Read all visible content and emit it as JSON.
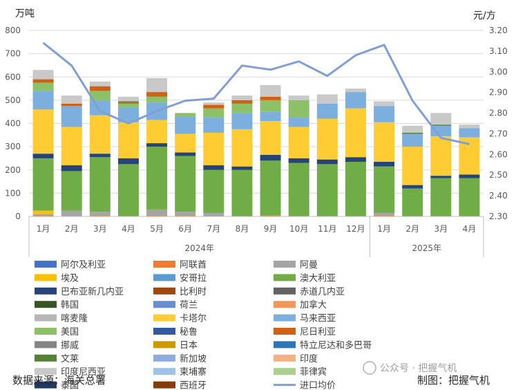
{
  "chart_data": {
    "type": "bar",
    "stacked": true,
    "categories": [
      "1月",
      "2月",
      "3月",
      "4月",
      "5月",
      "6月",
      "7月",
      "8月",
      "9月",
      "10月",
      "11月",
      "12月",
      "1月",
      "2月",
      "3月",
      "4月"
    ],
    "year_groups": [
      {
        "label": "2024年",
        "count": 12
      },
      {
        "label": "2025年",
        "count": 4
      }
    ],
    "left_axis": {
      "unit": "万吨",
      "min": 0,
      "max": 800,
      "step": 100
    },
    "right_axis": {
      "unit": "元/方",
      "min": 2.3,
      "max": 3.2,
      "step": 0.1
    },
    "series": [
      {
        "name": "阿尔及利亚",
        "color": "#4472c4",
        "values": [
          0,
          0,
          0,
          0,
          0,
          0,
          0,
          0,
          0,
          0,
          0,
          0,
          0,
          0,
          0,
          0
        ]
      },
      {
        "name": "阿联酋",
        "color": "#ed7d31",
        "values": [
          5,
          0,
          5,
          0,
          5,
          5,
          0,
          0,
          5,
          0,
          0,
          0,
          5,
          0,
          0,
          0
        ]
      },
      {
        "name": "阿曼",
        "color": "#a5a5a5",
        "values": [
          5,
          25,
          15,
          0,
          25,
          15,
          15,
          0,
          0,
          0,
          0,
          0,
          10,
          0,
          0,
          0
        ]
      },
      {
        "name": "埃及",
        "color": "#ffc000",
        "values": [
          15,
          0,
          0,
          0,
          0,
          0,
          0,
          0,
          0,
          0,
          0,
          0,
          0,
          0,
          0,
          0
        ]
      },
      {
        "name": "安哥拉",
        "color": "#5b9bd5",
        "values": [
          0,
          0,
          0,
          0,
          0,
          0,
          0,
          0,
          0,
          0,
          0,
          0,
          0,
          0,
          0,
          0
        ]
      },
      {
        "name": "澳大利亚",
        "color": "#70ad47",
        "values": [
          225,
          170,
          235,
          225,
          270,
          240,
          185,
          200,
          235,
          230,
          225,
          235,
          200,
          120,
          165,
          165
        ]
      },
      {
        "name": "巴布亚新几内亚",
        "color": "#264478",
        "values": [
          20,
          25,
          15,
          25,
          15,
          15,
          20,
          15,
          25,
          20,
          20,
          20,
          20,
          15,
          10,
          15
        ]
      },
      {
        "name": "比利时",
        "color": "#9e480e",
        "values": [
          0,
          0,
          0,
          0,
          0,
          0,
          0,
          0,
          0,
          0,
          0,
          0,
          0,
          0,
          0,
          0
        ]
      },
      {
        "name": "赤道几内亚",
        "color": "#636363",
        "values": [
          0,
          0,
          0,
          0,
          0,
          0,
          0,
          0,
          0,
          0,
          0,
          0,
          0,
          0,
          0,
          0
        ]
      },
      {
        "name": "韩国",
        "color": "#375623",
        "values": [
          0,
          0,
          0,
          0,
          0,
          0,
          0,
          0,
          0,
          0,
          0,
          0,
          0,
          0,
          0,
          0
        ]
      },
      {
        "name": "荷兰",
        "color": "#698ed0",
        "values": [
          0,
          0,
          0,
          0,
          0,
          0,
          0,
          0,
          0,
          0,
          0,
          0,
          0,
          0,
          0,
          0
        ]
      },
      {
        "name": "加拿大",
        "color": "#f1975a",
        "values": [
          0,
          0,
          0,
          0,
          0,
          0,
          0,
          0,
          0,
          0,
          0,
          0,
          0,
          0,
          0,
          0
        ]
      },
      {
        "name": "喀麦隆",
        "color": "#b7b7b7",
        "values": [
          0,
          0,
          0,
          0,
          0,
          0,
          0,
          0,
          0,
          0,
          0,
          0,
          0,
          0,
          0,
          0
        ]
      },
      {
        "name": "卡塔尔",
        "color": "#ffcd33",
        "values": [
          190,
          165,
          165,
          155,
          100,
          80,
          140,
          160,
          145,
          135,
          175,
          210,
          170,
          165,
          170,
          160
        ]
      },
      {
        "name": "马来西亚",
        "color": "#7cafdd",
        "values": [
          80,
          90,
          65,
          65,
          75,
          75,
          65,
          70,
          40,
          40,
          65,
          70,
          70,
          55,
          45,
          40
        ]
      },
      {
        "name": "美国",
        "color": "#8cc168",
        "values": [
          35,
          0,
          40,
          15,
          25,
          15,
          40,
          40,
          50,
          75,
          0,
          0,
          0,
          0,
          0,
          0
        ]
      },
      {
        "name": "秘鲁",
        "color": "#335aa1",
        "values": [
          0,
          0,
          0,
          0,
          0,
          0,
          0,
          0,
          0,
          0,
          0,
          0,
          0,
          0,
          0,
          0
        ]
      },
      {
        "name": "尼日利亚",
        "color": "#d26012",
        "values": [
          15,
          10,
          20,
          5,
          20,
          0,
          15,
          15,
          15,
          0,
          0,
          0,
          0,
          0,
          0,
          0
        ]
      },
      {
        "name": "挪威",
        "color": "#848484",
        "values": [
          0,
          0,
          0,
          0,
          0,
          0,
          0,
          0,
          0,
          0,
          0,
          0,
          0,
          0,
          0,
          0
        ]
      },
      {
        "name": "日本",
        "color": "#cc9a00",
        "values": [
          0,
          0,
          0,
          0,
          0,
          0,
          0,
          0,
          0,
          0,
          0,
          0,
          0,
          0,
          0,
          0
        ]
      },
      {
        "name": "特立尼达和多巴哥",
        "color": "#2e75b6",
        "values": [
          0,
          0,
          0,
          0,
          0,
          0,
          0,
          0,
          0,
          0,
          0,
          0,
          0,
          0,
          0,
          0
        ]
      },
      {
        "name": "文莱",
        "color": "#548235",
        "values": [
          0,
          0,
          0,
          5,
          0,
          0,
          0,
          0,
          0,
          0,
          0,
          0,
          0,
          5,
          5,
          0
        ]
      },
      {
        "name": "新加坡",
        "color": "#8faadc",
        "values": [
          0,
          0,
          0,
          0,
          0,
          0,
          0,
          0,
          0,
          0,
          0,
          0,
          0,
          0,
          0,
          0
        ]
      },
      {
        "name": "印度",
        "color": "#f4b183",
        "values": [
          0,
          0,
          0,
          0,
          0,
          0,
          0,
          0,
          0,
          0,
          0,
          0,
          0,
          0,
          0,
          0
        ]
      },
      {
        "name": "印度尼西亚",
        "color": "#c9c9c9",
        "values": [
          40,
          35,
          20,
          20,
          60,
          0,
          10,
          20,
          50,
          20,
          40,
          15,
          20,
          30,
          50,
          15
        ]
      },
      {
        "name": "柬埔寨",
        "color": "#9dc3e6",
        "values": [
          0,
          0,
          0,
          0,
          0,
          0,
          0,
          0,
          0,
          0,
          0,
          0,
          0,
          0,
          0,
          0
        ]
      },
      {
        "name": "菲律宾",
        "color": "#a9d18e",
        "values": [
          0,
          0,
          0,
          0,
          0,
          0,
          0,
          0,
          0,
          0,
          0,
          0,
          0,
          0,
          0,
          0
        ]
      },
      {
        "name": "泰国",
        "color": "#1f3864",
        "values": [
          0,
          0,
          0,
          0,
          0,
          0,
          0,
          0,
          0,
          0,
          0,
          0,
          0,
          0,
          0,
          0
        ]
      },
      {
        "name": "西班牙",
        "color": "#843c0c",
        "values": [
          0,
          0,
          0,
          0,
          0,
          0,
          0,
          0,
          0,
          0,
          0,
          0,
          0,
          0,
          0,
          0
        ]
      }
    ],
    "line_series": {
      "name": "进口均价",
      "color": "#7f9fd6",
      "axis": "right",
      "values": [
        3.14,
        3.03,
        2.81,
        2.75,
        2.81,
        2.86,
        2.87,
        3.03,
        3.01,
        3.05,
        2.98,
        3.08,
        3.13,
        2.86,
        2.68,
        2.65
      ]
    }
  },
  "footer": {
    "source": "数据来源：海关总署",
    "maker": "制图：把握气机"
  },
  "watermark": "公众号 · 把握气机"
}
